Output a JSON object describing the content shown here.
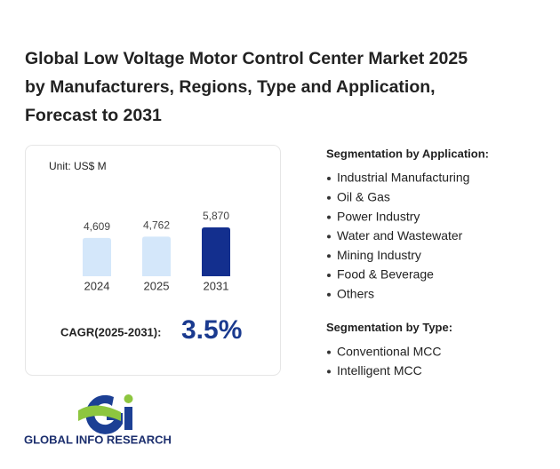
{
  "title_lines": [
    "Global Low Voltage Motor Control Center Market 2025",
    "by Manufacturers, Regions, Type and Application,",
    "Forecast to 2031"
  ],
  "chart_data": {
    "type": "bar",
    "unit": "Unit: US$ M",
    "categories": [
      "2024",
      "2025",
      "2031"
    ],
    "values": [
      4609,
      4762,
      5870
    ],
    "value_labels": [
      "4,609",
      "4,762",
      "5,870"
    ],
    "colors": [
      "#d4e7fa",
      "#d4e7fa",
      "#132f8e"
    ]
  },
  "cagr": {
    "label": "CAGR(2025-2031):",
    "value": "3.5%"
  },
  "segments": [
    {
      "heading": "Segmentation by Application:",
      "items": [
        "Industrial Manufacturing",
        "Oil & Gas",
        "Power Industry",
        "Water and Wastewater",
        "Mining Industry",
        "Food & Beverage",
        "Others"
      ]
    },
    {
      "heading": "Segmentation by Type:",
      "items": [
        "Conventional MCC",
        "Intelligent MCC"
      ]
    }
  ],
  "logo": "GLOBAL INFO RESEARCH"
}
